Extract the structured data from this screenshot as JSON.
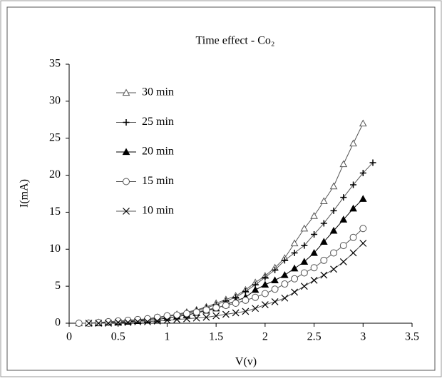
{
  "chart_data": {
    "type": "line",
    "title": "Time effect - Co₂",
    "x_label": "V(v)",
    "y_label": "I(mA)",
    "x": [
      0.1,
      0.2,
      0.3,
      0.4,
      0.5,
      0.6,
      0.7,
      0.8,
      0.9,
      1.0,
      1.1,
      1.2,
      1.3,
      1.4,
      1.5,
      1.6,
      1.7,
      1.8,
      1.9,
      2.0,
      2.1,
      2.2,
      2.3,
      2.4,
      2.5,
      2.6,
      2.7,
      2.8,
      2.9,
      3.0,
      3.1
    ],
    "xlim": [
      0,
      3.5
    ],
    "ylim": [
      0,
      35
    ],
    "xticks": [
      0,
      0.5,
      1,
      1.5,
      2,
      2.5,
      3,
      3.5
    ],
    "yticks": [
      0,
      5,
      10,
      15,
      20,
      25,
      30,
      35
    ],
    "series": [
      {
        "name": "30 min",
        "color": "#555",
        "marker": "triangle-open",
        "values": [
          0,
          0,
          0.1,
          0.1,
          0.2,
          0.3,
          0.4,
          0.6,
          0.8,
          1.0,
          1.2,
          1.5,
          1.8,
          2.2,
          2.7,
          3.2,
          3.7,
          4.5,
          5.5,
          6.4,
          7.5,
          8.8,
          10.8,
          12.8,
          14.5,
          16.5,
          18.5,
          21.5,
          24.3,
          27.0,
          null
        ]
      },
      {
        "name": "25 min",
        "color": "#555",
        "marker": "plus",
        "values": [
          null,
          0,
          0.1,
          0.1,
          0.2,
          0.3,
          0.4,
          0.5,
          0.7,
          0.9,
          1.1,
          1.4,
          1.7,
          2.1,
          2.5,
          3.0,
          3.5,
          4.3,
          5.2,
          6.2,
          7.2,
          8.5,
          9.5,
          10.5,
          12.0,
          13.5,
          15.2,
          17.0,
          18.7,
          20.3,
          21.7
        ]
      },
      {
        "name": "20 min",
        "color": "#000",
        "marker": "triangle-filled",
        "values": [
          null,
          0,
          0,
          0.1,
          0.1,
          0.2,
          0.3,
          0.4,
          0.5,
          0.7,
          0.9,
          1.1,
          1.4,
          1.7,
          2.0,
          2.5,
          3.0,
          3.5,
          4.5,
          5.2,
          5.8,
          6.5,
          7.4,
          8.3,
          9.5,
          11.0,
          12.5,
          14.0,
          15.5,
          16.8,
          null
        ]
      },
      {
        "name": "15 min",
        "color": "#555",
        "marker": "circle-open",
        "values": [
          0,
          0,
          0.1,
          0.2,
          0.3,
          0.4,
          0.5,
          0.6,
          0.8,
          1.0,
          1.1,
          1.3,
          1.5,
          1.8,
          2.1,
          2.4,
          2.7,
          3.1,
          3.5,
          4.0,
          4.6,
          5.3,
          6.0,
          6.8,
          7.5,
          8.5,
          9.5,
          10.5,
          11.6,
          12.8,
          null
        ]
      },
      {
        "name": "10 min",
        "color": "#555",
        "marker": "x",
        "values": [
          null,
          0,
          0,
          0,
          0.1,
          0.1,
          0.2,
          0.2,
          0.3,
          0.4,
          0.5,
          0.6,
          0.7,
          0.8,
          1.0,
          1.2,
          1.4,
          1.6,
          2.0,
          2.5,
          2.9,
          3.4,
          4.2,
          5.0,
          5.8,
          6.5,
          7.3,
          8.3,
          9.5,
          10.8,
          null
        ]
      }
    ]
  }
}
